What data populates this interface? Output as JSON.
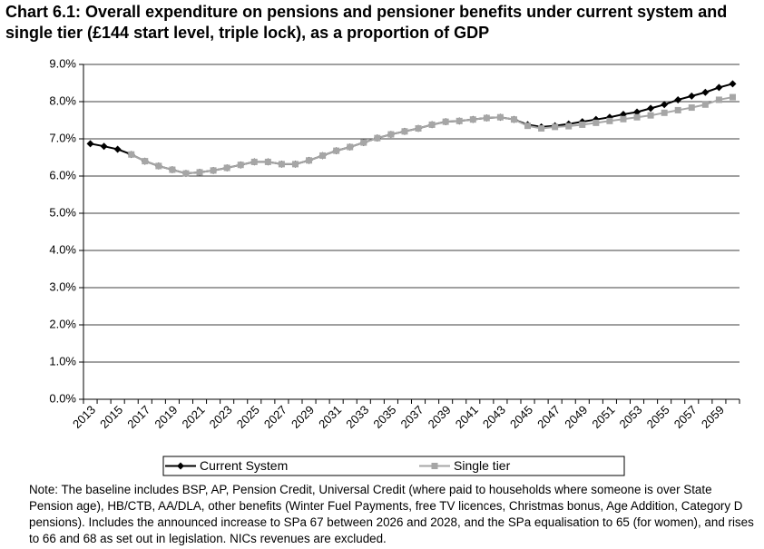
{
  "chart_data": {
    "type": "line",
    "title": "Chart 6.1: Overall expenditure on pensions and pensioner benefits under current system and single tier (£144 start level, triple lock), as a proportion of GDP",
    "note": "Note: The baseline includes BSP, AP, Pension Credit, Universal Credit (where paid to households where someone is over State Pension age), HB/CTB, AA/DLA, other benefits (Winter Fuel Payments, free TV licences, Christmas bonus, Age Addition, Category D pensions). Includes the announced increase to SPa 67 between 2026 and 2028, and the SPa equalisation to 65 (for women), and rises to 66 and 68 as set out in legislation. NICs revenues are excluded.",
    "categories": [
      "2013",
      null,
      "2015",
      null,
      "2017",
      null,
      "2019",
      null,
      "2021",
      null,
      "2023",
      null,
      "2025",
      null,
      "2027",
      null,
      "2029",
      null,
      "2031",
      null,
      "2033",
      null,
      "2035",
      null,
      "2037",
      null,
      "2039",
      null,
      "2041",
      null,
      "2043",
      null,
      "2045",
      null,
      "2047",
      null,
      "2049",
      null,
      "2051",
      null,
      "2053",
      null,
      "2055",
      null,
      "2057",
      null,
      "2059",
      null
    ],
    "series": [
      {
        "name": "Current System",
        "color": "#000000",
        "marker": "diamond",
        "values": [
          6.87,
          6.8,
          6.72,
          6.58,
          6.4,
          6.27,
          6.17,
          6.07,
          6.1,
          6.15,
          6.22,
          6.3,
          6.38,
          6.38,
          6.32,
          6.32,
          6.42,
          6.55,
          6.68,
          6.78,
          6.9,
          7.02,
          7.12,
          7.2,
          7.28,
          7.38,
          7.46,
          7.48,
          7.52,
          7.56,
          7.58,
          7.52,
          7.38,
          7.32,
          7.35,
          7.4,
          7.46,
          7.52,
          7.58,
          7.66,
          7.72,
          7.82,
          7.92,
          8.05,
          8.15,
          8.25,
          8.38,
          8.48
        ]
      },
      {
        "name": "Single tier",
        "color": "#a6a6a6",
        "marker": "square",
        "values": [
          null,
          null,
          null,
          6.58,
          6.4,
          6.27,
          6.17,
          6.07,
          6.1,
          6.15,
          6.22,
          6.3,
          6.38,
          6.38,
          6.32,
          6.32,
          6.42,
          6.55,
          6.68,
          6.78,
          6.9,
          7.02,
          7.12,
          7.2,
          7.28,
          7.38,
          7.46,
          7.48,
          7.52,
          7.56,
          7.58,
          7.52,
          7.35,
          7.28,
          7.32,
          7.34,
          7.38,
          7.43,
          7.48,
          7.53,
          7.58,
          7.63,
          7.7,
          7.77,
          7.84,
          7.92,
          8.05,
          8.12
        ]
      }
    ],
    "ylim": [
      0,
      9
    ],
    "yticks": [
      {
        "value": 0,
        "label": "0.0%"
      },
      {
        "value": 1,
        "label": "1.0%"
      },
      {
        "value": 2,
        "label": "2.0%"
      },
      {
        "value": 3,
        "label": "3.0%"
      },
      {
        "value": 4,
        "label": "4.0%"
      },
      {
        "value": 5,
        "label": "5.0%"
      },
      {
        "value": 6,
        "label": "6.0%"
      },
      {
        "value": 7,
        "label": "7.0%"
      },
      {
        "value": 8,
        "label": "8.0%"
      },
      {
        "value": 9,
        "label": "9.0%"
      }
    ],
    "grid": true,
    "legend": "bottom"
  }
}
